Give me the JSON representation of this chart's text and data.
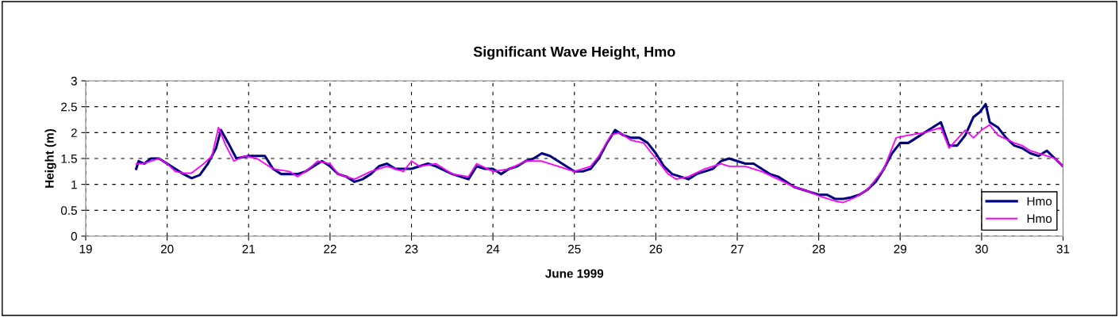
{
  "chart_data": {
    "type": "line",
    "title": "Significant Wave Height, Hmo",
    "xlabel": "June 1999",
    "ylabel": "Height (m)",
    "xlim": [
      19,
      31
    ],
    "xticks": [
      19,
      20,
      21,
      22,
      23,
      24,
      25,
      26,
      27,
      28,
      29,
      30,
      31
    ],
    "ylim": [
      0,
      3
    ],
    "yticks": [
      0,
      0.5,
      1,
      1.5,
      2,
      2.5,
      3
    ],
    "grid": true,
    "legend": "bottom right",
    "line_style": "solid",
    "marker": "none",
    "series": [
      {
        "name": "Hmo",
        "color": "#000080",
        "x": [
          19.62,
          19.65,
          19.72,
          19.8,
          19.9,
          20.0,
          20.1,
          20.2,
          20.3,
          20.4,
          20.5,
          20.6,
          20.66,
          20.75,
          20.85,
          21.0,
          21.1,
          21.2,
          21.3,
          21.4,
          21.5,
          21.6,
          21.7,
          21.8,
          21.9,
          22.0,
          22.1,
          22.2,
          22.3,
          22.4,
          22.5,
          22.6,
          22.7,
          22.8,
          22.9,
          23.0,
          23.1,
          23.2,
          23.3,
          23.5,
          23.7,
          23.8,
          23.9,
          24.0,
          24.1,
          24.2,
          24.3,
          24.4,
          24.5,
          24.6,
          24.7,
          24.8,
          24.9,
          25.0,
          25.1,
          25.2,
          25.3,
          25.4,
          25.5,
          25.6,
          25.7,
          25.8,
          25.9,
          26.0,
          26.1,
          26.2,
          26.3,
          26.4,
          26.5,
          26.6,
          26.7,
          26.8,
          26.9,
          27.0,
          27.1,
          27.2,
          27.3,
          27.4,
          27.5,
          27.6,
          27.7,
          27.8,
          27.9,
          28.0,
          28.1,
          28.2,
          28.3,
          28.4,
          28.5,
          28.6,
          28.7,
          28.8,
          28.9,
          29.0,
          29.1,
          29.2,
          29.3,
          29.4,
          29.5,
          29.6,
          29.7,
          29.8,
          29.9,
          29.98,
          30.05,
          30.1,
          30.2,
          30.3,
          30.4,
          30.5,
          30.6,
          30.7,
          30.8,
          30.9,
          31.0
        ],
        "values": [
          1.3,
          1.45,
          1.4,
          1.5,
          1.5,
          1.4,
          1.3,
          1.2,
          1.12,
          1.18,
          1.4,
          1.7,
          2.05,
          1.8,
          1.5,
          1.55,
          1.55,
          1.55,
          1.3,
          1.2,
          1.2,
          1.2,
          1.25,
          1.35,
          1.45,
          1.35,
          1.2,
          1.15,
          1.05,
          1.1,
          1.2,
          1.35,
          1.4,
          1.3,
          1.3,
          1.3,
          1.35,
          1.4,
          1.35,
          1.2,
          1.1,
          1.35,
          1.3,
          1.3,
          1.2,
          1.3,
          1.35,
          1.45,
          1.5,
          1.6,
          1.55,
          1.45,
          1.35,
          1.25,
          1.25,
          1.3,
          1.5,
          1.8,
          2.05,
          1.95,
          1.9,
          1.9,
          1.8,
          1.6,
          1.35,
          1.2,
          1.15,
          1.1,
          1.2,
          1.25,
          1.3,
          1.45,
          1.5,
          1.45,
          1.4,
          1.4,
          1.3,
          1.2,
          1.15,
          1.05,
          0.95,
          0.9,
          0.85,
          0.8,
          0.8,
          0.72,
          0.72,
          0.75,
          0.8,
          0.9,
          1.05,
          1.3,
          1.6,
          1.8,
          1.8,
          1.9,
          2.0,
          2.1,
          2.2,
          1.75,
          1.75,
          1.95,
          2.3,
          2.4,
          2.55,
          2.2,
          2.1,
          1.9,
          1.75,
          1.7,
          1.6,
          1.55,
          1.65,
          1.5,
          1.35
        ]
      },
      {
        "name": "Hmo",
        "color": "#ff00ff",
        "x": [
          19.62,
          19.7,
          19.8,
          19.9,
          20.0,
          20.1,
          20.2,
          20.3,
          20.45,
          20.55,
          20.63,
          20.72,
          20.82,
          20.95,
          21.1,
          21.3,
          21.5,
          21.6,
          21.7,
          21.85,
          22.0,
          22.1,
          22.3,
          22.5,
          22.7,
          22.9,
          23.0,
          23.1,
          23.3,
          23.5,
          23.7,
          23.8,
          24.0,
          24.2,
          24.4,
          24.6,
          24.8,
          25.0,
          25.2,
          25.3,
          25.45,
          25.55,
          25.7,
          25.85,
          26.0,
          26.15,
          26.25,
          26.4,
          26.6,
          26.8,
          26.9,
          27.1,
          27.3,
          27.5,
          27.7,
          27.9,
          28.0,
          28.2,
          28.3,
          28.45,
          28.6,
          28.8,
          28.95,
          29.1,
          29.3,
          29.5,
          29.6,
          29.8,
          29.9,
          30.0,
          30.1,
          30.2,
          30.4,
          30.5,
          30.6,
          30.8,
          30.9,
          31.0
        ],
        "values": [
          1.4,
          1.4,
          1.45,
          1.5,
          1.4,
          1.25,
          1.22,
          1.22,
          1.4,
          1.55,
          2.1,
          1.75,
          1.45,
          1.55,
          1.5,
          1.3,
          1.25,
          1.15,
          1.25,
          1.45,
          1.4,
          1.2,
          1.1,
          1.25,
          1.35,
          1.25,
          1.45,
          1.35,
          1.4,
          1.2,
          1.15,
          1.4,
          1.25,
          1.3,
          1.45,
          1.45,
          1.35,
          1.25,
          1.35,
          1.55,
          1.95,
          2.0,
          1.85,
          1.8,
          1.5,
          1.2,
          1.1,
          1.15,
          1.3,
          1.4,
          1.35,
          1.35,
          1.25,
          1.1,
          0.95,
          0.85,
          0.78,
          0.68,
          0.65,
          0.75,
          0.9,
          1.3,
          1.9,
          1.95,
          2.0,
          2.1,
          1.7,
          2.05,
          1.9,
          2.05,
          2.15,
          1.95,
          1.8,
          1.75,
          1.65,
          1.55,
          1.5,
          1.35
        ]
      }
    ]
  }
}
